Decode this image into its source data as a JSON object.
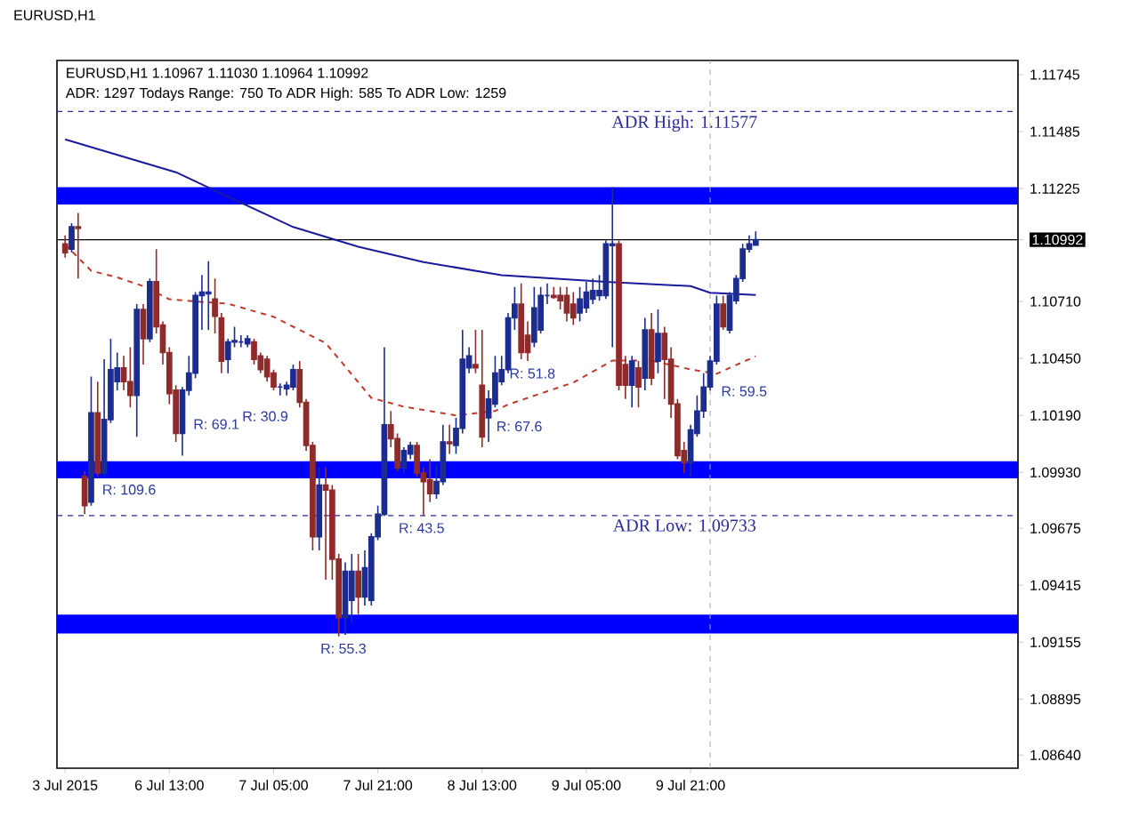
{
  "chart_data": {
    "type": "candlestick",
    "title": "EURUSD,H1  1.10967 1.11030 1.10964 1.10992",
    "subtitle": "ADR: 1297  Todays Range: 750  To ADR High: 585  To ADR Low: 1259",
    "categories": [
      "3 Jul 2015",
      null,
      null,
      null,
      null,
      null,
      null,
      null,
      null,
      null,
      null,
      null,
      null,
      null,
      null,
      null,
      "6 Jul 13:00",
      null,
      null,
      null,
      null,
      null,
      null,
      null,
      null,
      null,
      null,
      null,
      null,
      null,
      null,
      null,
      "7 Jul 05:00",
      null,
      null,
      null,
      null,
      null,
      null,
      null,
      null,
      null,
      null,
      null,
      null,
      null,
      null,
      null,
      "7 Jul 21:00",
      null,
      null,
      null,
      null,
      null,
      null,
      null,
      null,
      null,
      null,
      null,
      null,
      null,
      null,
      null,
      "8 Jul 13:00",
      null,
      null,
      null,
      null,
      null,
      null,
      null,
      null,
      null,
      null,
      null,
      null,
      null,
      null,
      null,
      "9 Jul 05:00",
      null,
      null,
      null,
      null,
      null,
      null,
      null,
      null,
      null,
      null,
      null,
      null,
      null,
      null,
      null,
      "9 Jul 21:00",
      null,
      null,
      null,
      null,
      null,
      null,
      null,
      null,
      null,
      null,
      null,
      null,
      null,
      null,
      null,
      null,
      null,
      null,
      null,
      null,
      null,
      null,
      null,
      null,
      null,
      null,
      null,
      null,
      null,
      null,
      null,
      null,
      null,
      null,
      null,
      null,
      null,
      null,
      null,
      null,
      null,
      null,
      null,
      null,
      null,
      null,
      null,
      null,
      null,
      null
    ],
    "ohlc": [
      [
        1.10973,
        1.11012,
        1.1091,
        1.10933
      ],
      [
        1.10949,
        1.11067,
        1.10933,
        1.11051
      ],
      [
        1.11051,
        1.11114,
        1.10815,
        1.11043
      ],
      [
        1.09912,
        1.09935,
        1.09739,
        1.09778
      ],
      [
        1.09794,
        1.10367,
        1.09778,
        1.10202
      ],
      [
        1.10202,
        1.10344,
        1.09912,
        1.09927
      ],
      [
        1.09927,
        1.10446,
        1.09912,
        1.10171
      ],
      [
        1.10171,
        1.1054,
        1.10155,
        1.10399
      ],
      [
        1.10344,
        1.10477,
        1.10305,
        1.10407
      ],
      [
        1.10407,
        1.10462,
        1.10305,
        1.10344
      ],
      [
        1.10344,
        1.10501,
        1.10226,
        1.10281
      ],
      [
        1.10281,
        1.10698,
        1.10092,
        1.10674
      ],
      [
        1.10674,
        1.10698,
        1.10422,
        1.1054
      ],
      [
        1.1054,
        1.10815,
        1.10525,
        1.108
      ],
      [
        1.108,
        1.10949,
        1.10564,
        1.10595
      ],
      [
        1.10603,
        1.10619,
        1.10422,
        1.10477
      ],
      [
        1.10477,
        1.10501,
        1.10242,
        1.10289
      ],
      [
        1.10305,
        1.10328,
        1.10069,
        1.10108
      ],
      [
        1.10108,
        1.1032,
        1.10006,
        1.10305
      ],
      [
        1.10305,
        1.10462,
        1.10281,
        1.10383
      ],
      [
        1.10383,
        1.10753,
        1.1036,
        1.10737
      ],
      [
        1.10737,
        1.10831,
        1.1058,
        1.10753
      ],
      [
        1.10745,
        1.10894,
        1.1058,
        1.10753
      ],
      [
        1.10721,
        1.10815,
        1.10564,
        1.10643
      ],
      [
        1.10635,
        1.10658,
        1.10383,
        1.10438
      ],
      [
        1.10446,
        1.1054,
        1.10383,
        1.10525
      ],
      [
        1.10525,
        1.10595,
        1.10501,
        1.10532
      ],
      [
        1.10525,
        1.10556,
        1.10501,
        1.10525
      ],
      [
        1.10517,
        1.10556,
        1.10501,
        1.1054
      ],
      [
        1.10525,
        1.1054,
        1.10422,
        1.10446
      ],
      [
        1.10462,
        1.10477,
        1.10383,
        1.10399
      ],
      [
        1.10446,
        1.10462,
        1.10344,
        1.10367
      ],
      [
        1.10383,
        1.10399,
        1.10305,
        1.1032
      ],
      [
        1.1032,
        1.10336,
        1.10281,
        1.1032
      ],
      [
        1.10312,
        1.10344,
        1.10281,
        1.10328
      ],
      [
        1.1032,
        1.10422,
        1.10305,
        1.10399
      ],
      [
        1.10399,
        1.10438,
        1.10226,
        1.1025
      ],
      [
        1.1025,
        1.10265,
        1.10029,
        1.10053
      ],
      [
        1.10053,
        1.10069,
        1.09574,
        1.09636
      ],
      [
        1.09636,
        1.09951,
        1.09574,
        1.09872
      ],
      [
        1.09872,
        1.09951,
        1.0944,
        1.09849
      ],
      [
        1.09849,
        1.09872,
        1.0944,
        1.09534
      ],
      [
        1.09534,
        1.09558,
        1.09181,
        1.09267
      ],
      [
        1.09267,
        1.09519,
        1.09189,
        1.09479
      ],
      [
        1.09346,
        1.09558,
        1.09243,
        1.09479
      ],
      [
        1.09479,
        1.09558,
        1.09283,
        1.09361
      ],
      [
        1.09361,
        1.09574,
        1.09322,
        1.09495
      ],
      [
        1.09346,
        1.09652,
        1.09322,
        1.09636
      ],
      [
        1.09636,
        1.09778,
        1.09621,
        1.09739
      ],
      [
        1.09739,
        1.10501,
        1.09731,
        1.10147
      ],
      [
        1.10147,
        1.1021,
        1.10045,
        1.10084
      ],
      [
        1.10084,
        1.10108,
        1.09935,
        1.09951
      ],
      [
        1.09951,
        1.10045,
        1.09927,
        1.10029
      ],
      [
        1.10014,
        1.10069,
        1.0999,
        1.10053
      ],
      [
        1.10053,
        1.10069,
        1.09912,
        1.09927
      ],
      [
        1.09927,
        1.09951,
        1.09731,
        1.09888
      ],
      [
        1.09896,
        1.0999,
        1.09794,
        1.09833
      ],
      [
        1.09833,
        1.09967,
        1.09809,
        1.09888
      ],
      [
        1.09888,
        1.10147,
        1.09872,
        1.10069
      ],
      [
        1.10069,
        1.10147,
        1.10014,
        1.10061
      ],
      [
        1.10053,
        1.10179,
        1.10014,
        1.10131
      ],
      [
        1.10131,
        1.1058,
        1.10108,
        1.10446
      ],
      [
        1.10407,
        1.10501,
        1.10383,
        1.10462
      ],
      [
        1.10422,
        1.1058,
        1.10383,
        1.10407
      ],
      [
        1.10328,
        1.1058,
        1.10045,
        1.10092
      ],
      [
        1.10179,
        1.10305,
        1.10069,
        1.10265
      ],
      [
        1.10242,
        1.10462,
        1.10226,
        1.10383
      ],
      [
        1.10344,
        1.10462,
        1.10328,
        1.10399
      ],
      [
        1.10399,
        1.10658,
        1.10383,
        1.10635
      ],
      [
        1.10635,
        1.10776,
        1.1058,
        1.10698
      ],
      [
        1.10698,
        1.10792,
        1.10446,
        1.10477
      ],
      [
        1.10556,
        1.10619,
        1.10438,
        1.10477
      ],
      [
        1.10525,
        1.10776,
        1.10501,
        1.10681
      ],
      [
        1.1058,
        1.10776,
        1.10564,
        1.10737
      ],
      [
        1.10737,
        1.10792,
        1.10698,
        1.10737
      ],
      [
        1.10737,
        1.10776,
        1.10721,
        1.10729
      ],
      [
        1.10737,
        1.10776,
        1.10674,
        1.10713
      ],
      [
        1.10737,
        1.10776,
        1.10619,
        1.10658
      ],
      [
        1.10698,
        1.10753,
        1.10603,
        1.10635
      ],
      [
        1.10658,
        1.10776,
        1.10619,
        1.10721
      ],
      [
        1.10681,
        1.108,
        1.10658,
        1.10753
      ],
      [
        1.10721,
        1.10815,
        1.10698,
        1.1076
      ],
      [
        1.10737,
        1.10831,
        1.10713,
        1.1076
      ],
      [
        1.10737,
        1.10988,
        1.10721,
        1.10973
      ],
      [
        1.10965,
        1.11232,
        1.10501,
        1.10973
      ],
      [
        1.10973,
        1.10988,
        1.10305,
        1.10328
      ],
      [
        1.10422,
        1.10462,
        1.10265,
        1.10328
      ],
      [
        1.10328,
        1.10462,
        1.10226,
        1.10438
      ],
      [
        1.10407,
        1.10438,
        1.10226,
        1.1032
      ],
      [
        1.1036,
        1.10635,
        1.10305,
        1.1058
      ],
      [
        1.1058,
        1.10658,
        1.10328,
        1.1036
      ],
      [
        1.10438,
        1.10674,
        1.10383,
        1.10564
      ],
      [
        1.10564,
        1.10595,
        1.10265,
        1.10446
      ],
      [
        1.10446,
        1.10501,
        1.10179,
        1.10242
      ],
      [
        1.10242,
        1.10265,
        1.0999,
        1.10006
      ],
      [
        1.10029,
        1.10069,
        1.09927,
        1.09974
      ],
      [
        1.09974,
        1.10147,
        1.09912,
        1.10124
      ],
      [
        1.10108,
        1.10281,
        1.10092,
        1.1021
      ],
      [
        1.1021,
        1.10383,
        1.10179,
        1.1032
      ],
      [
        1.1032,
        1.10462,
        1.10305,
        1.10438
      ],
      [
        1.10438,
        1.10737,
        1.10422,
        1.10698
      ],
      [
        1.10698,
        1.10737,
        1.1058,
        1.10595
      ],
      [
        1.1058,
        1.10753,
        1.10564,
        1.10737
      ],
      [
        1.10713,
        1.10831,
        1.10698,
        1.10815
      ],
      [
        1.10815,
        1.10973,
        1.108,
        1.10949
      ],
      [
        1.10949,
        1.11012,
        1.10933,
        1.10973
      ],
      [
        1.10967,
        1.1103,
        1.10964,
        1.10992
      ],
      null,
      null,
      null,
      null,
      null,
      null,
      null,
      null,
      null,
      null,
      null,
      null,
      null,
      null,
      null,
      null,
      null,
      null,
      null,
      null,
      null,
      null,
      null,
      null,
      null,
      null,
      null,
      null,
      null,
      null,
      null,
      null,
      null,
      null,
      null,
      null,
      null,
      null,
      null,
      null
    ],
    "colors": [
      "#8e2b2b",
      "#1c2d8f",
      "#8e2b2b",
      "#8e2b2b",
      "#1c2d8f",
      "#8e2b2b",
      "#1c2d8f",
      "#1c2d8f",
      "#1c2d8f",
      "#8e2b2b",
      "#8e2b2b",
      "#1c2d8f",
      "#8e2b2b",
      "#1c2d8f",
      "#8e2b2b",
      "#8e2b2b",
      "#8e2b2b",
      "#8e2b2b",
      "#1c2d8f",
      "#1c2d8f",
      "#1c2d8f",
      "#1c2d8f",
      "#1c2d8f",
      "#8e2b2b",
      "#8e2b2b",
      "#1c2d8f",
      "#1c2d8f",
      "#1c2d8f",
      "#1c2d8f",
      "#8e2b2b",
      "#8e2b2b",
      "#8e2b2b",
      "#8e2b2b",
      "#1c2d8f",
      "#1c2d8f",
      "#1c2d8f",
      "#8e2b2b",
      "#8e2b2b",
      "#8e2b2b",
      "#1c2d8f",
      "#8e2b2b",
      "#8e2b2b",
      "#8e2b2b",
      "#1c2d8f",
      "#1c2d8f",
      "#8e2b2b",
      "#1c2d8f",
      "#1c2d8f",
      "#1c2d8f",
      "#1c2d8f",
      "#8e2b2b",
      "#8e2b2b",
      "#1c2d8f",
      "#1c2d8f",
      "#8e2b2b",
      "#8e2b2b",
      "#8e2b2b",
      "#1c2d8f",
      "#1c2d8f",
      "#8e2b2b",
      "#1c2d8f",
      "#1c2d8f",
      "#1c2d8f",
      "#8e2b2b",
      "#8e2b2b",
      "#1c2d8f",
      "#1c2d8f",
      "#1c2d8f",
      "#1c2d8f",
      "#1c2d8f",
      "#8e2b2b",
      "#8e2b2b",
      "#1c2d8f",
      "#1c2d8f",
      "#1c2d8f",
      "#8e2b2b",
      "#8e2b2b",
      "#8e2b2b",
      "#8e2b2b",
      "#1c2d8f",
      "#1c2d8f",
      "#1c2d8f",
      "#1c2d8f",
      "#1c2d8f",
      "#1c2d8f",
      "#8e2b2b",
      "#8e2b2b",
      "#1c2d8f",
      "#8e2b2b",
      "#1c2d8f",
      "#8e2b2b",
      "#1c2d8f",
      "#8e2b2b",
      "#8e2b2b",
      "#8e2b2b",
      "#8e2b2b",
      "#1c2d8f",
      "#1c2d8f",
      "#1c2d8f",
      "#1c2d8f",
      "#1c2d8f",
      "#8e2b2b",
      "#1c2d8f",
      "#1c2d8f",
      "#1c2d8f",
      "#1c2d8f",
      "#1c2d8f",
      null,
      null,
      null,
      null,
      null,
      null,
      null,
      null,
      null,
      null,
      null,
      null,
      null,
      null,
      null,
      null,
      null,
      null,
      null,
      null,
      null,
      null,
      null,
      null,
      null,
      null,
      null,
      null,
      null,
      null,
      null,
      null,
      null,
      null,
      null,
      null,
      null,
      null,
      null,
      null
    ],
    "series": [
      {
        "type": "line",
        "color": "#1a1a9c",
        "line_style": "solid",
        "values": [
          1.1145,
          null,
          null,
          null,
          null,
          null,
          null,
          null,
          null,
          null,
          null,
          null,
          null,
          null,
          null,
          null,
          null,
          1.113,
          null,
          null,
          null,
          null,
          1.1123,
          null,
          null,
          null,
          null,
          null,
          null,
          null,
          null,
          null,
          null,
          null,
          null,
          1.1105,
          null,
          null,
          null,
          null,
          null,
          null,
          null,
          null,
          null,
          1.1096,
          null,
          null,
          null,
          null,
          null,
          null,
          null,
          null,
          null,
          1.1089,
          null,
          null,
          null,
          null,
          null,
          null,
          null,
          null,
          null,
          null,
          null,
          1.1083,
          null,
          null,
          null,
          null,
          null,
          null,
          null,
          null,
          null,
          null,
          null,
          null,
          null,
          null,
          null,
          1.108,
          null,
          null,
          null,
          null,
          null,
          null,
          null,
          null,
          null,
          null,
          null,
          null,
          1.1078,
          null,
          null,
          1.1075,
          null,
          null,
          null,
          null,
          null,
          null,
          1.1074,
          null,
          null,
          null,
          null,
          null,
          null,
          null,
          null,
          null,
          null,
          null,
          null,
          null,
          null,
          null,
          null,
          null,
          null,
          null,
          null,
          null,
          null,
          null,
          null,
          null,
          null,
          null,
          null,
          null,
          null,
          null,
          null,
          null,
          null,
          null,
          null,
          null,
          null,
          null,
          null
        ]
      },
      {
        "type": "line",
        "color": "#c0392b",
        "line_style": "dashed",
        "values": [
          1.1097,
          null,
          null,
          null,
          1.1085,
          null,
          null,
          null,
          1.1082,
          null,
          null,
          null,
          1.1078,
          null,
          null,
          null,
          1.1072,
          null,
          null,
          null,
          1.1071,
          null,
          null,
          null,
          null,
          1.107,
          null,
          null,
          null,
          null,
          null,
          null,
          1.1064,
          null,
          null,
          null,
          null,
          null,
          null,
          null,
          1.1052,
          null,
          null,
          null,
          null,
          null,
          null,
          1.1027,
          null,
          null,
          null,
          null,
          1.1023,
          null,
          null,
          null,
          null,
          null,
          null,
          null,
          1.1019,
          null,
          null,
          null,
          null,
          null,
          1.1021,
          null,
          1.1024,
          null,
          null,
          null,
          null,
          null,
          null,
          null,
          null,
          null,
          1.1034,
          null,
          null,
          null,
          null,
          null,
          1.1044,
          null,
          null,
          null,
          null,
          null,
          1.1044,
          null,
          null,
          null,
          null,
          null,
          1.104,
          null,
          null,
          null,
          1.1038,
          null,
          null,
          null,
          null,
          null,
          1.1046,
          null,
          null,
          null,
          null,
          null,
          null,
          null,
          null,
          null,
          null,
          null,
          null,
          null,
          null,
          null,
          null,
          null,
          null,
          null,
          null,
          null,
          null,
          null,
          null,
          null,
          null,
          null,
          null,
          null,
          null,
          null,
          null,
          null,
          null,
          null,
          null,
          null,
          null,
          null,
          null
        ]
      }
    ],
    "ylim": [
      1.0858,
      1.1181
    ],
    "yticks": [
      {
        "value": 1.11745,
        "label": "1.11745"
      },
      {
        "value": 1.11485,
        "label": "1.11485"
      },
      {
        "value": 1.11225,
        "label": "1.11225"
      },
      {
        "value": 1.10992,
        "label": "1.10992"
      },
      {
        "value": 1.1071,
        "label": "1.10710"
      },
      {
        "value": 1.1045,
        "label": "1.10450"
      },
      {
        "value": 1.1019,
        "label": "1.10190"
      },
      {
        "value": 1.0993,
        "label": "1.09930"
      },
      {
        "value": 1.09675,
        "label": "1.09675"
      },
      {
        "value": 1.09415,
        "label": "1.09415"
      },
      {
        "value": 1.09155,
        "label": "1.09155"
      },
      {
        "value": 1.08895,
        "label": "1.08895"
      },
      {
        "value": 1.0864,
        "label": "1.08640"
      }
    ],
    "bands": [
      {
        "axis": "y",
        "from": 1.11153,
        "to": 1.11232,
        "color": "#0000ff"
      },
      {
        "axis": "y",
        "from": 1.09903,
        "to": 1.09981,
        "color": "#0000ff"
      },
      {
        "axis": "y",
        "from": 1.09195,
        "to": 1.09281,
        "color": "#0000ff"
      }
    ],
    "ref_lines": [
      {
        "axis": "y",
        "value": 1.11577,
        "label": "ADR High: 1.11577",
        "color": "#2b2b9b",
        "line_style": "dashed"
      },
      {
        "axis": "y",
        "value": 1.09733,
        "label": "ADR Low: 1.09733",
        "color": "#2b2b9b",
        "line_style": "dashed"
      },
      {
        "axis": "y",
        "value": 1.10992,
        "color": "#000000",
        "line_style": "solid"
      }
    ],
    "annotations": [
      "EURUSD,H1",
      "R: 109.6",
      "R: 69.1",
      "R: 30.9",
      "R: 55.3",
      "R: 43.5",
      "R: 67.6",
      "R: 51.8",
      "R: 59.5"
    ]
  }
}
